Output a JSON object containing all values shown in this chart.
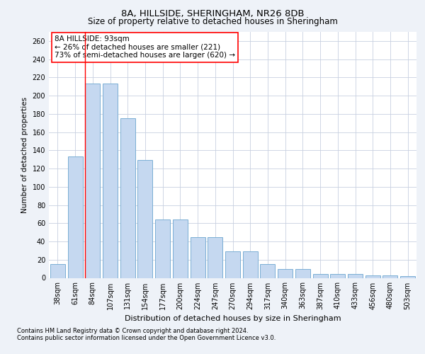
{
  "title1": "8A, HILLSIDE, SHERINGHAM, NR26 8DB",
  "title2": "Size of property relative to detached houses in Sheringham",
  "xlabel": "Distribution of detached houses by size in Sheringham",
  "ylabel": "Number of detached properties",
  "categories": [
    "38sqm",
    "61sqm",
    "84sqm",
    "107sqm",
    "131sqm",
    "154sqm",
    "177sqm",
    "200sqm",
    "224sqm",
    "247sqm",
    "270sqm",
    "294sqm",
    "317sqm",
    "340sqm",
    "363sqm",
    "387sqm",
    "410sqm",
    "433sqm",
    "456sqm",
    "480sqm",
    "503sqm"
  ],
  "values": [
    15,
    133,
    213,
    213,
    175,
    129,
    64,
    64,
    45,
    45,
    29,
    29,
    15,
    10,
    10,
    4,
    4,
    4,
    3,
    3,
    2
  ],
  "bar_color": "#c5d8f0",
  "bar_edge_color": "#7aaed4",
  "red_line_index": 2,
  "ylim": [
    0,
    270
  ],
  "yticks": [
    0,
    20,
    40,
    60,
    80,
    100,
    120,
    140,
    160,
    180,
    200,
    220,
    240,
    260
  ],
  "annotation_text": "8A HILLSIDE: 93sqm\n← 26% of detached houses are smaller (221)\n73% of semi-detached houses are larger (620) →",
  "footnote1": "Contains HM Land Registry data © Crown copyright and database right 2024.",
  "footnote2": "Contains public sector information licensed under the Open Government Licence v3.0.",
  "bg_color": "#eef2f8",
  "plot_bg_color": "#ffffff",
  "grid_color": "#c8d0e0",
  "title1_fontsize": 9.5,
  "title2_fontsize": 8.5,
  "xlabel_fontsize": 8,
  "ylabel_fontsize": 7.5,
  "tick_fontsize": 7,
  "annot_fontsize": 7.5,
  "footnote_fontsize": 6
}
